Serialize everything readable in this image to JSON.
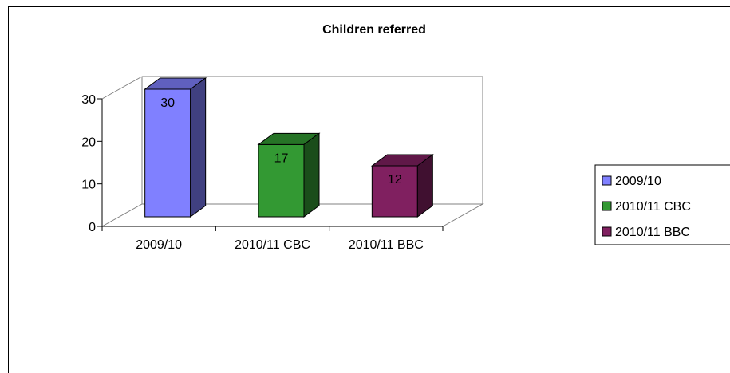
{
  "chart_data": {
    "type": "bar",
    "title": "Children referred",
    "categories": [
      "2009/10",
      "2010/11 CBC",
      "2010/11 BBC"
    ],
    "values": [
      30,
      17,
      12
    ],
    "data_labels": [
      "30",
      "17",
      "12"
    ],
    "colors": [
      "#8080FF",
      "#339933",
      "#802060"
    ],
    "ylim": [
      0,
      30
    ],
    "yticks": [
      "0",
      "10",
      "20",
      "30"
    ],
    "legend": {
      "position": "right",
      "entries": [
        "2009/10",
        "2010/11 CBC",
        "2010/11 BBC"
      ]
    },
    "grid": false,
    "three_d": true
  }
}
